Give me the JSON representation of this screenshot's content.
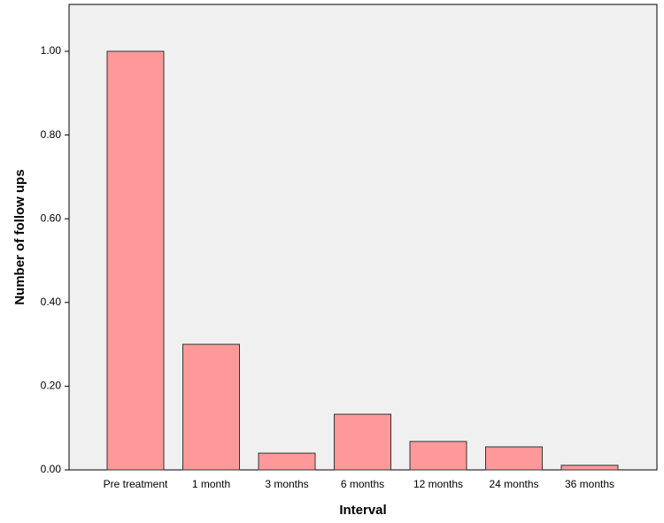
{
  "chart_data": {
    "type": "bar",
    "x_label": "Interval",
    "y_label": "Number of follow ups",
    "categories": [
      "Pre treatment",
      "1 month",
      "3 months",
      "6 months",
      "12 months",
      "24 months",
      "36 months"
    ],
    "values": [
      1.0,
      0.3,
      0.04,
      0.133,
      0.068,
      0.055,
      0.011
    ],
    "color": "#ff9999",
    "ylim": [
      0,
      1.112
    ],
    "yticks": [
      {
        "value": 0,
        "label": "0.00"
      },
      {
        "value": 0.2,
        "label": "0.20"
      },
      {
        "value": 0.4,
        "label": "0.40"
      },
      {
        "value": 0.6,
        "label": "0.60"
      },
      {
        "value": 0.8,
        "label": "0.80"
      },
      {
        "value": 1.0,
        "label": "1.00"
      }
    ]
  }
}
